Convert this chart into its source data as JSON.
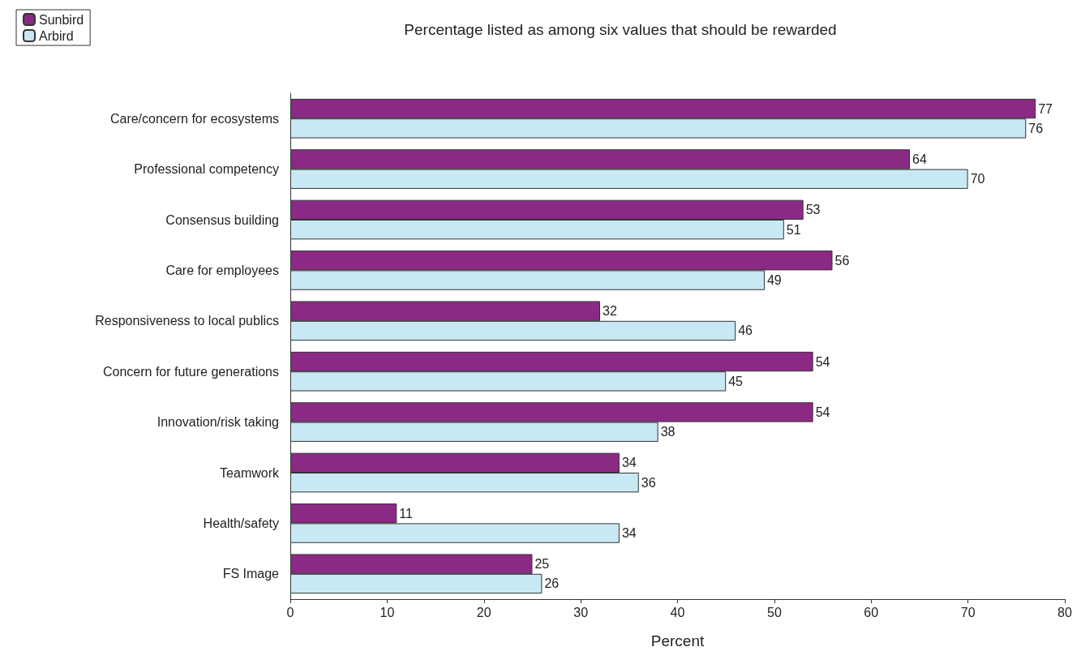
{
  "chart_data": {
    "type": "bar",
    "orientation": "horizontal",
    "title": "Percentage listed as among six values that should be rewarded",
    "xlabel": "Percent",
    "categories": [
      "Care/concern for ecosystems",
      "Professional competency",
      "Consensus building",
      "Care for employees",
      "Responsiveness to local publics",
      "Concern for future generations",
      "Innovation/risk taking",
      "Teamwork",
      "Health/safety",
      "FS Image"
    ],
    "series": [
      {
        "name": "Sunbird",
        "color": "#8b2a85",
        "values": [
          77,
          64,
          53,
          56,
          32,
          54,
          54,
          34,
          11,
          25
        ]
      },
      {
        "name": "Arbird",
        "color": "#c8e9f3",
        "values": [
          76,
          70,
          51,
          49,
          46,
          45,
          38,
          36,
          34,
          26
        ]
      }
    ],
    "xlim": [
      0,
      80
    ],
    "xticks": [
      0,
      10,
      20,
      30,
      40,
      50,
      60,
      70,
      80
    ],
    "data_labels": true,
    "legend": "top left",
    "grid": false
  }
}
